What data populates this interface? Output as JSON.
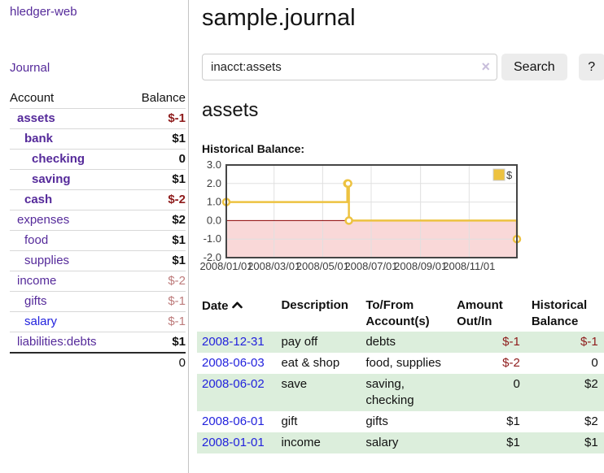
{
  "sidebar": {
    "app_title": "hledger-web",
    "journal_link": "Journal",
    "accounts_header": {
      "account": "Account",
      "balance": "Balance"
    },
    "accounts": [
      {
        "name": "assets",
        "level": 0,
        "bold": true,
        "color": "purple",
        "balance": "$-1"
      },
      {
        "name": "bank",
        "level": 1,
        "bold": true,
        "color": "purple",
        "balance": "$1"
      },
      {
        "name": "checking",
        "level": 2,
        "bold": true,
        "color": "purple",
        "balance": "0"
      },
      {
        "name": "saving",
        "level": 2,
        "bold": true,
        "color": "purple",
        "balance": "$1"
      },
      {
        "name": "cash",
        "level": 1,
        "bold": true,
        "color": "purple",
        "balance": "$-2"
      },
      {
        "name": "expenses",
        "level": 0,
        "bold": false,
        "color": "purple",
        "balance": "$2"
      },
      {
        "name": "food",
        "level": 1,
        "bold": false,
        "color": "purple",
        "balance": "$1"
      },
      {
        "name": "supplies",
        "level": 1,
        "bold": false,
        "color": "purple",
        "balance": "$1"
      },
      {
        "name": "income",
        "level": 0,
        "bold": false,
        "color": "purple",
        "balance": "$-2"
      },
      {
        "name": "gifts",
        "level": 1,
        "bold": false,
        "color": "purple",
        "balance": "$-1"
      },
      {
        "name": "salary",
        "level": 1,
        "bold": false,
        "color": "blue",
        "balance": "$-1"
      },
      {
        "name": "liabilities:debts",
        "level": 0,
        "bold": false,
        "color": "purple",
        "balance": "$1"
      }
    ],
    "total": "0"
  },
  "main": {
    "title": "sample.journal",
    "search": {
      "value": "inacct:assets",
      "clear_icon": "×",
      "button_label": "Search",
      "help_label": "?"
    },
    "account_heading": "assets"
  },
  "chart_data": {
    "type": "line",
    "title": "Historical Balance:",
    "x_domain": [
      "2008-01-01",
      "2008-12-31"
    ],
    "ylim": [
      -2,
      3
    ],
    "yticks": [
      3,
      2,
      1,
      0,
      -1,
      -2
    ],
    "xticks": [
      "2008/01/01",
      "2008/03/01",
      "2008/05/01",
      "2008/07/01",
      "2008/09/01",
      "2008/11/01"
    ],
    "series": [
      {
        "name": "$",
        "color": "#edc240",
        "step": true,
        "points": [
          [
            "2008-01-01",
            1
          ],
          [
            "2008-06-01",
            2
          ],
          [
            "2008-06-02",
            2
          ],
          [
            "2008-06-03",
            0
          ],
          [
            "2008-12-31",
            -1
          ]
        ]
      }
    ],
    "negative_fill": "#f9d8d8",
    "zero_line_color": "#8b0000",
    "grid": true,
    "legend": {
      "label": "$",
      "position": "top-right"
    }
  },
  "register": {
    "headers": {
      "date": "Date",
      "description": "Description",
      "accounts": "To/From Account(s)",
      "amount": "Amount Out/In",
      "balance": "Historical Balance"
    },
    "sort": "ascending",
    "rows": [
      {
        "date": "2008-12-31",
        "description": "pay off",
        "accounts": "debts",
        "amount": "$-1",
        "balance": "$-1"
      },
      {
        "date": "2008-06-03",
        "description": "eat & shop",
        "accounts": "food, supplies",
        "amount": "$-2",
        "balance": "0"
      },
      {
        "date": "2008-06-02",
        "description": "save",
        "accounts": "saving, checking",
        "amount": "0",
        "balance": "$2"
      },
      {
        "date": "2008-06-01",
        "description": "gift",
        "accounts": "gifts",
        "amount": "$1",
        "balance": "$2"
      },
      {
        "date": "2008-01-01",
        "description": "income",
        "accounts": "salary",
        "amount": "$1",
        "balance": "$1"
      }
    ]
  },
  "colors": {
    "link_purple": "#552a9a",
    "link_blue": "#2222dd",
    "negative_dark": "#8e1b1b",
    "negative_light": "#bd7b7b",
    "row_green": "#dceedc",
    "series_gold": "#edc240"
  }
}
